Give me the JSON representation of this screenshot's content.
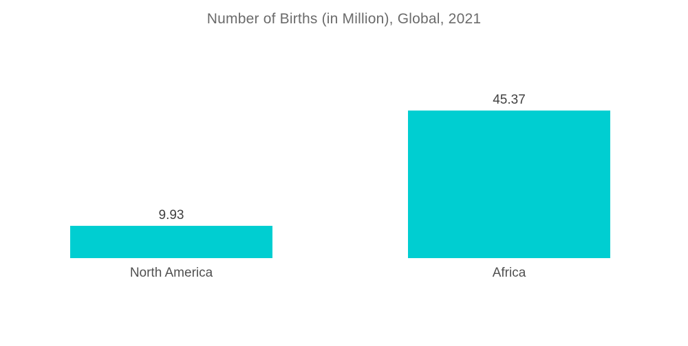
{
  "chart_data": {
    "type": "bar",
    "title": "Number of Births (in Million), Global, 2021",
    "categories": [
      "North America",
      "Africa"
    ],
    "values": [
      9.93,
      45.37
    ],
    "value_labels": [
      "9.93",
      "45.37"
    ],
    "xlabel": "",
    "ylabel": "",
    "ylim": [
      0,
      45.37
    ],
    "grid": false,
    "legend": "none",
    "bar_color": "#00CED1"
  }
}
